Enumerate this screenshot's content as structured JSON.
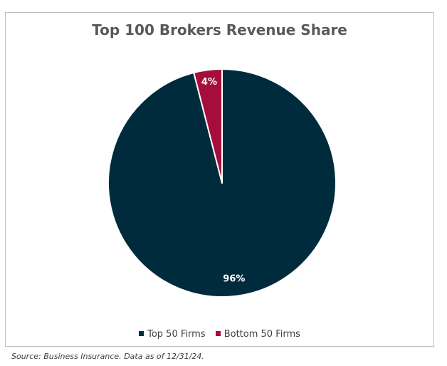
{
  "chart_data": {
    "type": "pie",
    "title": "Top 100 Brokers Revenue Share",
    "categories": [
      "Top 50 Firms",
      "Bottom 50 Firms"
    ],
    "values": [
      96,
      4
    ],
    "labels": [
      "96%",
      "4%"
    ],
    "colors": [
      "#002b3d",
      "#a50e3c"
    ],
    "legend_position": "bottom"
  },
  "source_note": "Source: Business Insurance. Data as of 12/31/24."
}
